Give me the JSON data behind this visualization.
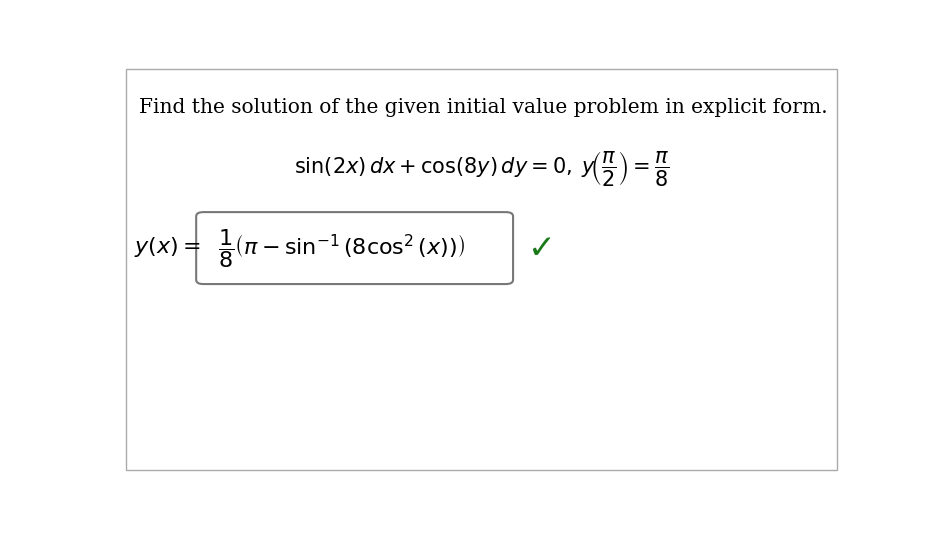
{
  "title_text": "Find the solution of the given initial value problem in explicit form.",
  "problem_text": "$\\sin(2x)\\,dx + \\cos(8y)\\,dy = 0, \\; y\\!\\left(\\dfrac{\\pi}{2}\\right) = \\dfrac{\\pi}{8}$",
  "solution_label": "$y(x) = $",
  "solution_box_text": "$\\dfrac{1}{8}\\left(\\pi - \\sin^{-1}(8\\cos^2(x))\\right)$",
  "checkmark": "✓",
  "bg_color": "#ffffff",
  "border_color": "#aaaaaa",
  "text_color": "#000000",
  "check_color": "#1a7a1a",
  "box_edge_color": "#777777",
  "title_fontsize": 14.5,
  "problem_fontsize": 15,
  "solution_fontsize": 16,
  "check_fontsize": 24
}
